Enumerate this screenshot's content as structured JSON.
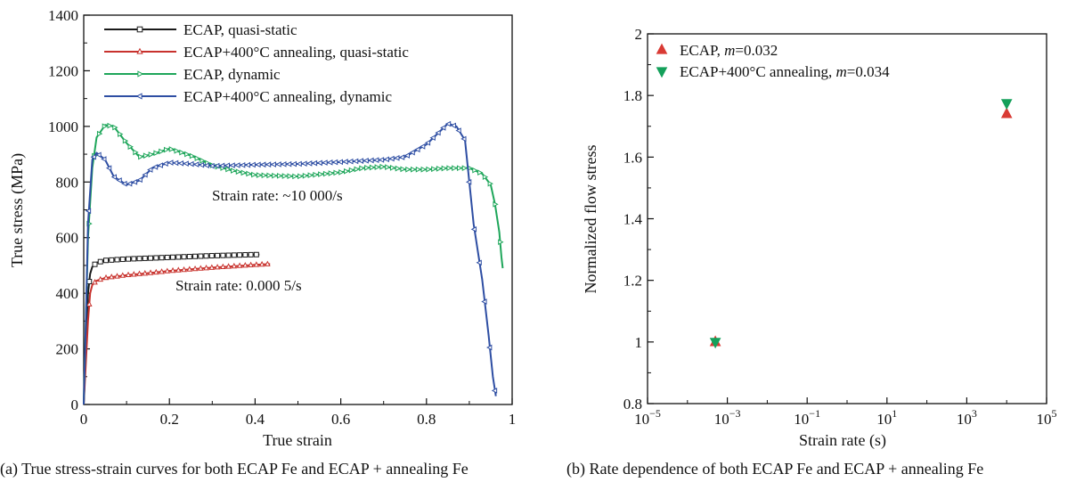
{
  "chart_data": [
    {
      "type": "line",
      "caption": "(a) True stress-strain curves for both ECAP Fe and ECAP + annealing Fe",
      "xlabel": "True strain",
      "ylabel": "True stress (MPa)",
      "xlim": [
        0,
        1
      ],
      "ylim": [
        0,
        1400
      ],
      "xticks": [
        "0",
        "0.2",
        "0.4",
        "0.6",
        "0.8",
        "1"
      ],
      "yticks": [
        "0",
        "200",
        "400",
        "600",
        "800",
        "1000",
        "1200",
        "1400"
      ],
      "grid": false,
      "legend_position": "top-left",
      "annotations": [
        "Strain rate: ~10 000/s",
        "Strain rate: 0.000 5/s"
      ],
      "series": [
        {
          "name": "ECAP, quasi-static",
          "color": "#1a1a1a",
          "marker": "square",
          "points": [
            [
              0,
              0
            ],
            [
              0.005,
              200
            ],
            [
              0.01,
              400
            ],
            [
              0.015,
              470
            ],
            [
              0.02,
              495
            ],
            [
              0.03,
              510
            ],
            [
              0.05,
              518
            ],
            [
              0.1,
              523
            ],
            [
              0.15,
              526
            ],
            [
              0.2,
              529
            ],
            [
              0.25,
              532
            ],
            [
              0.3,
              535
            ],
            [
              0.35,
              537
            ],
            [
              0.4,
              539
            ],
            [
              0.41,
              539
            ]
          ]
        },
        {
          "name": "ECAP+400°C annealing, quasi-static",
          "color": "#c8322d",
          "marker": "triangle-up",
          "points": [
            [
              0,
              0
            ],
            [
              0.005,
              150
            ],
            [
              0.01,
              300
            ],
            [
              0.015,
              400
            ],
            [
              0.02,
              430
            ],
            [
              0.03,
              445
            ],
            [
              0.05,
              455
            ],
            [
              0.1,
              465
            ],
            [
              0.15,
              472
            ],
            [
              0.2,
              480
            ],
            [
              0.25,
              486
            ],
            [
              0.3,
              492
            ],
            [
              0.35,
              497
            ],
            [
              0.4,
              502
            ],
            [
              0.435,
              505
            ]
          ]
        },
        {
          "name": "ECAP, dynamic",
          "color": "#1ea65a",
          "marker": "triangle-right",
          "points": [
            [
              0,
              0
            ],
            [
              0.005,
              300
            ],
            [
              0.01,
              600
            ],
            [
              0.02,
              850
            ],
            [
              0.03,
              960
            ],
            [
              0.05,
              1005
            ],
            [
              0.07,
              1000
            ],
            [
              0.1,
              940
            ],
            [
              0.13,
              890
            ],
            [
              0.16,
              900
            ],
            [
              0.2,
              920
            ],
            [
              0.25,
              895
            ],
            [
              0.3,
              860
            ],
            [
              0.35,
              840
            ],
            [
              0.4,
              825
            ],
            [
              0.5,
              820
            ],
            [
              0.6,
              835
            ],
            [
              0.65,
              850
            ],
            [
              0.7,
              855
            ],
            [
              0.75,
              845
            ],
            [
              0.8,
              845
            ],
            [
              0.85,
              850
            ],
            [
              0.9,
              850
            ],
            [
              0.93,
              830
            ],
            [
              0.95,
              790
            ],
            [
              0.96,
              720
            ],
            [
              0.97,
              620
            ],
            [
              0.975,
              530
            ],
            [
              0.978,
              490
            ]
          ]
        },
        {
          "name": "ECAP+400°C annealing, dynamic",
          "color": "#2e4ea3",
          "marker": "triangle-left",
          "points": [
            [
              0,
              0
            ],
            [
              0.005,
              300
            ],
            [
              0.01,
              650
            ],
            [
              0.02,
              880
            ],
            [
              0.03,
              905
            ],
            [
              0.05,
              880
            ],
            [
              0.07,
              820
            ],
            [
              0.1,
              790
            ],
            [
              0.13,
              805
            ],
            [
              0.16,
              850
            ],
            [
              0.2,
              870
            ],
            [
              0.25,
              865
            ],
            [
              0.3,
              858
            ],
            [
              0.4,
              862
            ],
            [
              0.5,
              865
            ],
            [
              0.6,
              872
            ],
            [
              0.7,
              880
            ],
            [
              0.75,
              890
            ],
            [
              0.8,
              935
            ],
            [
              0.83,
              980
            ],
            [
              0.85,
              1010
            ],
            [
              0.87,
              1000
            ],
            [
              0.89,
              950
            ],
            [
              0.9,
              800
            ],
            [
              0.91,
              650
            ],
            [
              0.93,
              450
            ],
            [
              0.945,
              250
            ],
            [
              0.955,
              100
            ],
            [
              0.962,
              30
            ]
          ]
        }
      ]
    },
    {
      "type": "scatter",
      "caption": "(b) Rate dependence of both ECAP Fe and ECAP + annealing Fe",
      "xlabel": "Strain rate (s)",
      "ylabel": "Normalized flow stress",
      "x_scale": "log",
      "xlim": [
        1e-05,
        100000
      ],
      "ylim": [
        0.8,
        2.0
      ],
      "xticks": [
        {
          "base": "10",
          "exp": "−5"
        },
        {
          "base": "10",
          "exp": "−3"
        },
        {
          "base": "10",
          "exp": "−1"
        },
        {
          "base": "10",
          "exp": "1"
        },
        {
          "base": "10",
          "exp": "3"
        },
        {
          "base": "10",
          "exp": "5"
        }
      ],
      "yticks": [
        "0.8",
        "1",
        "1.2",
        "1.4",
        "1.6",
        "1.8",
        "2"
      ],
      "grid": false,
      "legend_position": "top-left",
      "series": [
        {
          "name_text": "ECAP, ",
          "name_m": "m",
          "name_val": "=0.032",
          "color": "#d93a34",
          "marker": "triangle-up",
          "points": [
            [
              0.0005,
              1.0
            ],
            [
              10000,
              1.74
            ]
          ]
        },
        {
          "name_text": "ECAP+400°C annealing, ",
          "name_m": "m",
          "name_val": "=0.034",
          "color": "#14a05a",
          "marker": "triangle-down",
          "points": [
            [
              0.0005,
              1.0
            ],
            [
              10000,
              1.775
            ]
          ]
        }
      ]
    }
  ]
}
